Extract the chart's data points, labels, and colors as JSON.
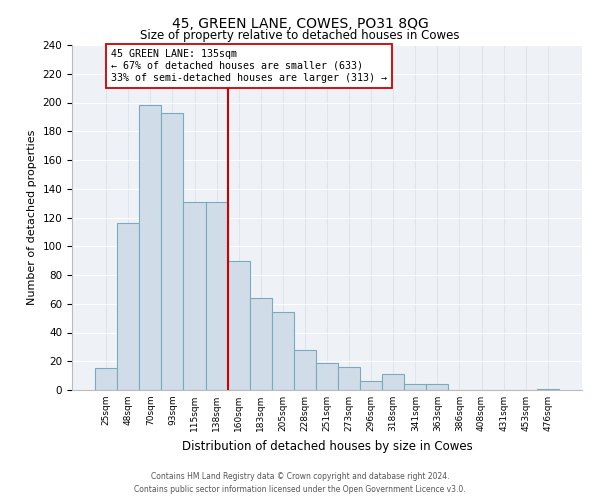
{
  "title": "45, GREEN LANE, COWES, PO31 8QG",
  "subtitle": "Size of property relative to detached houses in Cowes",
  "xlabel": "Distribution of detached houses by size in Cowes",
  "ylabel": "Number of detached properties",
  "bar_labels": [
    "25sqm",
    "48sqm",
    "70sqm",
    "93sqm",
    "115sqm",
    "138sqm",
    "160sqm",
    "183sqm",
    "205sqm",
    "228sqm",
    "251sqm",
    "273sqm",
    "296sqm",
    "318sqm",
    "341sqm",
    "363sqm",
    "386sqm",
    "408sqm",
    "431sqm",
    "453sqm",
    "476sqm"
  ],
  "bar_heights": [
    15,
    116,
    198,
    193,
    131,
    131,
    90,
    64,
    54,
    28,
    19,
    16,
    6,
    11,
    4,
    4,
    0,
    0,
    0,
    0,
    1
  ],
  "bar_color": "#d0dde8",
  "bar_edge_color": "#7aaabb",
  "vline_color": "#cc0000",
  "annotation_title": "45 GREEN LANE: 135sqm",
  "annotation_line1": "← 67% of detached houses are smaller (633)",
  "annotation_line2": "33% of semi-detached houses are larger (313) →",
  "annotation_box_color": "#ffffff",
  "annotation_box_edge_color": "#cc0000",
  "ylim": [
    0,
    240
  ],
  "yticks": [
    0,
    20,
    40,
    60,
    80,
    100,
    120,
    140,
    160,
    180,
    200,
    220,
    240
  ],
  "footer_line1": "Contains HM Land Registry data © Crown copyright and database right 2024.",
  "footer_line2": "Contains public sector information licensed under the Open Government Licence v3.0.",
  "bg_color": "#eef2f7"
}
